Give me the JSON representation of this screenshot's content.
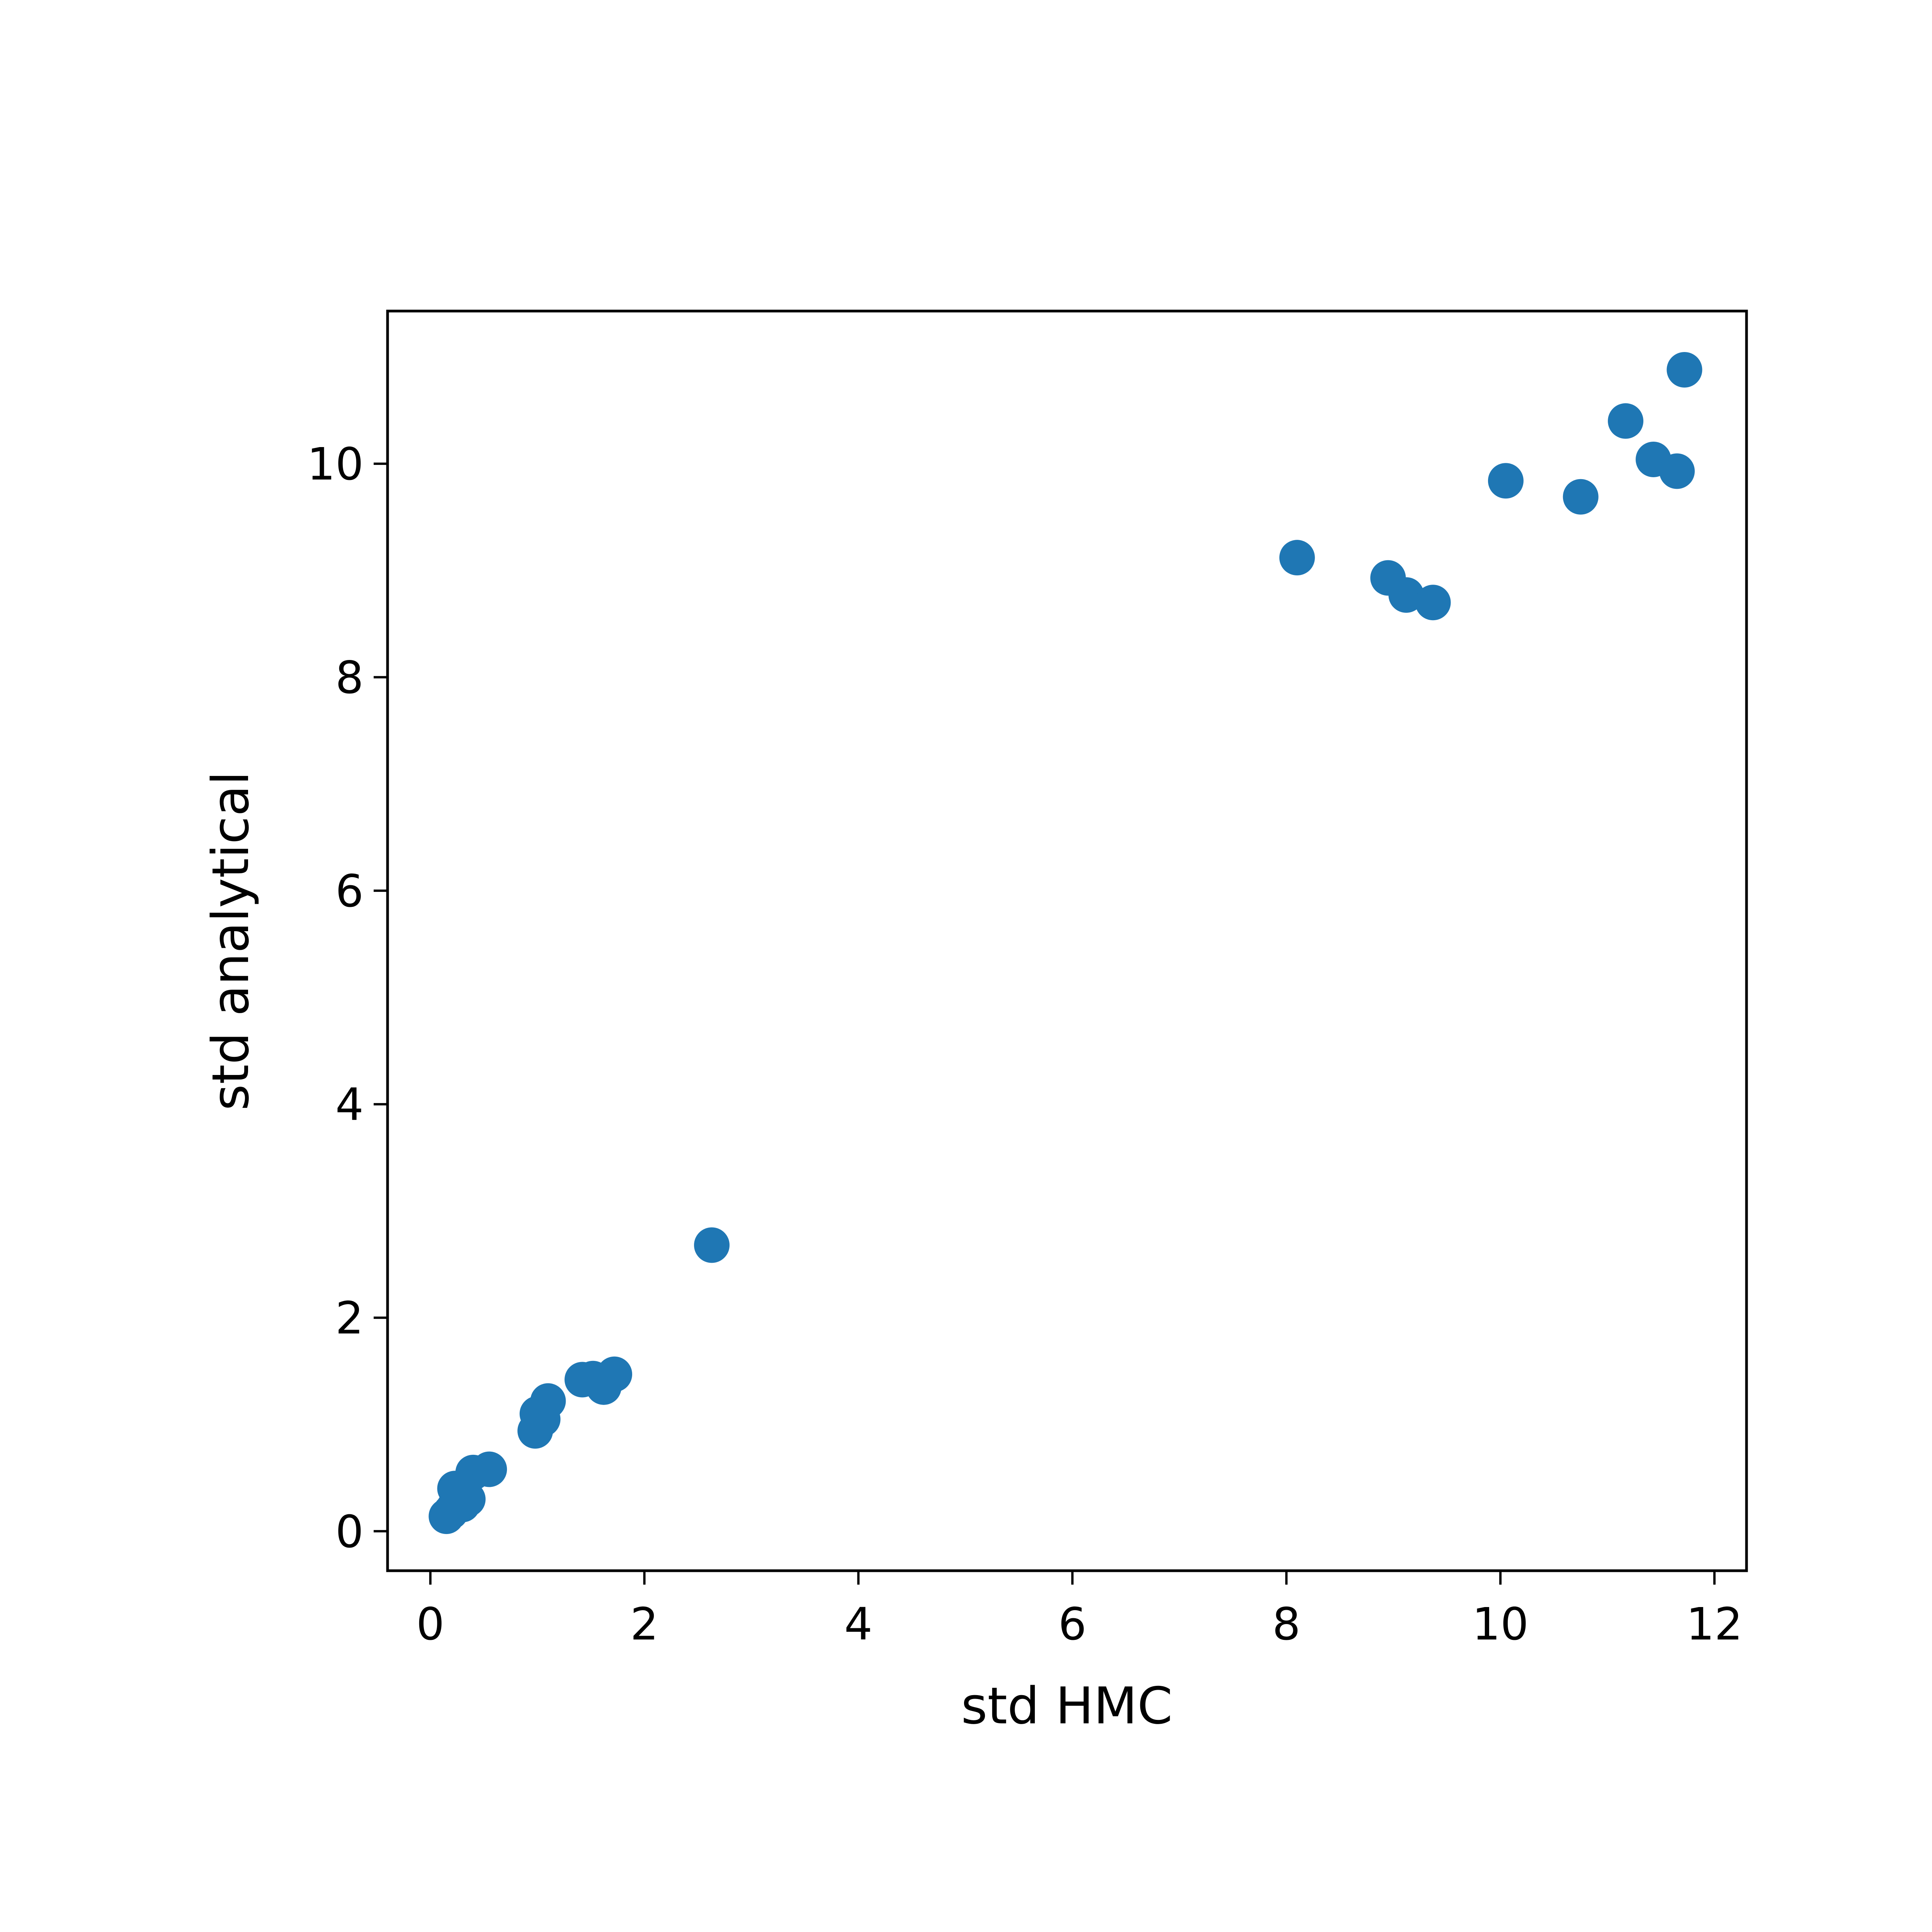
{
  "chart_data": {
    "type": "scatter",
    "title": "",
    "xlabel": "std HMC",
    "ylabel": "std analytical",
    "xlim": [
      -0.4,
      12.3
    ],
    "ylim": [
      -0.37,
      11.43
    ],
    "xticks": [
      0,
      2,
      4,
      6,
      8,
      10,
      12
    ],
    "yticks": [
      0,
      2,
      4,
      6,
      8,
      10
    ],
    "xtick_labels": [
      "0",
      "2",
      "4",
      "6",
      "8",
      "10",
      "12"
    ],
    "ytick_labels": [
      "0",
      "2",
      "4",
      "6",
      "8",
      "10"
    ],
    "grid": false,
    "legend": "none",
    "colors": {
      "points": "#1f77b4",
      "axes": "#000000",
      "background": "#ffffff"
    },
    "series": [
      {
        "points": [
          {
            "x": 0.15,
            "y": 0.14
          },
          {
            "x": 0.19,
            "y": 0.18
          },
          {
            "x": 0.22,
            "y": 0.22
          },
          {
            "x": 0.25,
            "y": 0.27
          },
          {
            "x": 0.3,
            "y": 0.25
          },
          {
            "x": 0.35,
            "y": 0.3
          },
          {
            "x": 0.23,
            "y": 0.4
          },
          {
            "x": 0.4,
            "y": 0.55
          },
          {
            "x": 0.55,
            "y": 0.58
          },
          {
            "x": 0.98,
            "y": 0.94
          },
          {
            "x": 1.05,
            "y": 1.05
          },
          {
            "x": 1.0,
            "y": 1.1
          },
          {
            "x": 1.1,
            "y": 1.22
          },
          {
            "x": 1.42,
            "y": 1.42
          },
          {
            "x": 1.52,
            "y": 1.43
          },
          {
            "x": 1.62,
            "y": 1.35
          },
          {
            "x": 1.72,
            "y": 1.47
          },
          {
            "x": 2.63,
            "y": 2.68
          },
          {
            "x": 8.1,
            "y": 9.12
          },
          {
            "x": 8.95,
            "y": 8.93
          },
          {
            "x": 9.12,
            "y": 8.77
          },
          {
            "x": 9.37,
            "y": 8.7
          },
          {
            "x": 10.05,
            "y": 9.84
          },
          {
            "x": 10.75,
            "y": 9.69
          },
          {
            "x": 11.17,
            "y": 10.4
          },
          {
            "x": 11.43,
            "y": 10.04
          },
          {
            "x": 11.65,
            "y": 9.93
          },
          {
            "x": 11.72,
            "y": 10.88
          }
        ]
      }
    ]
  }
}
